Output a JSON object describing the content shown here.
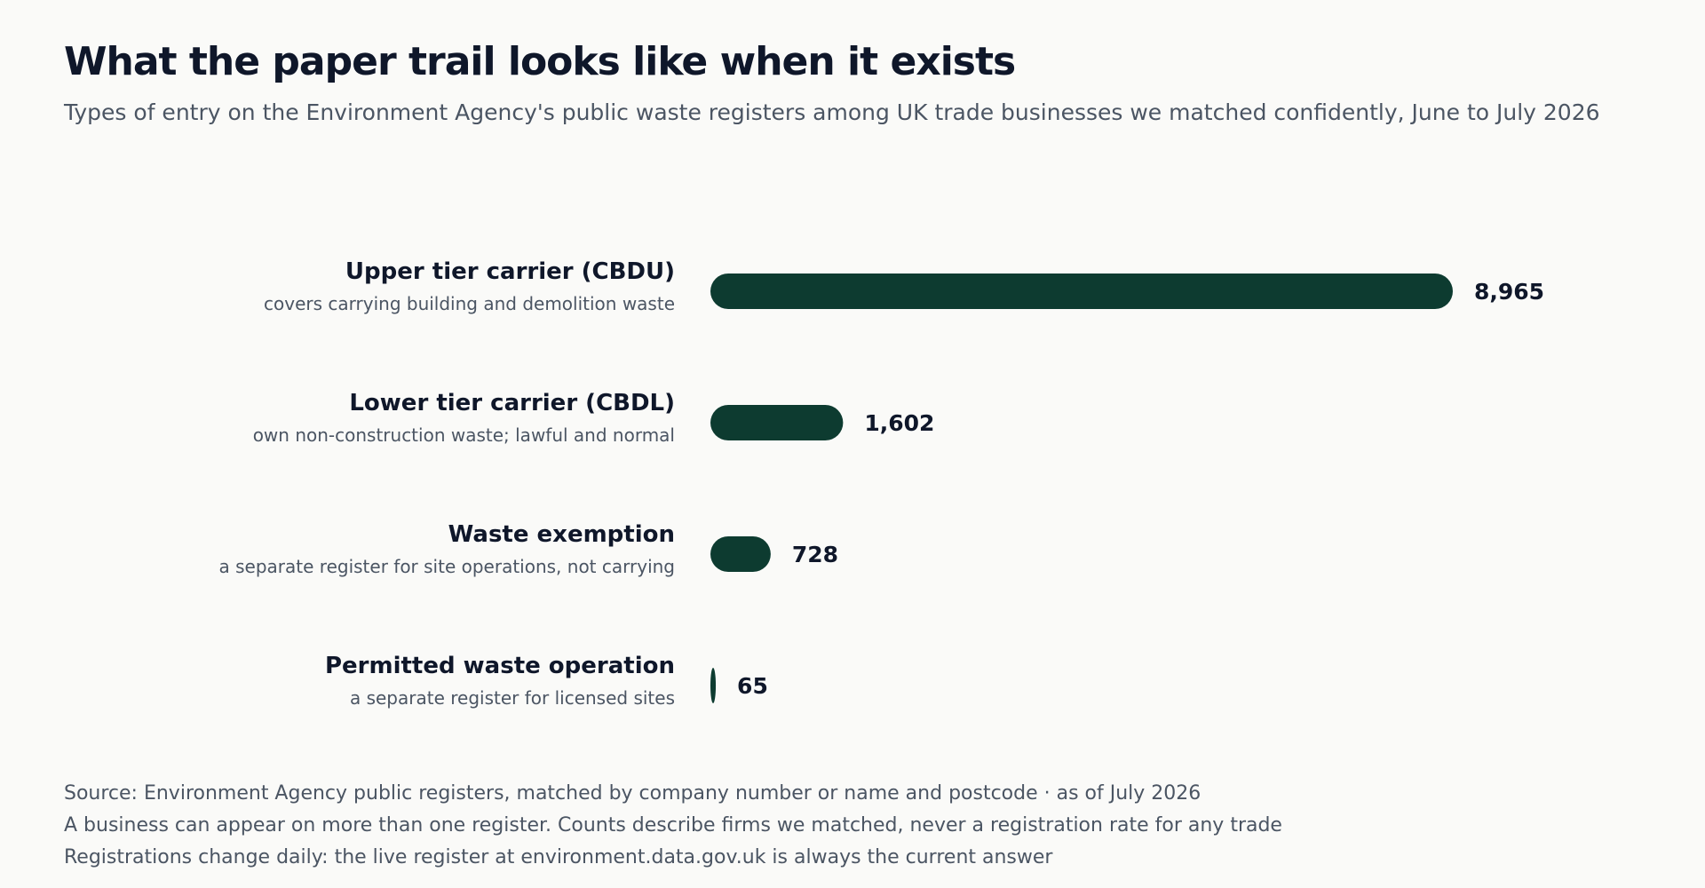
{
  "title": "What the paper trail looks like when it exists",
  "subtitle": "Types of entry on the Environment Agency's public waste registers among UK trade businesses we matched confidently, June to July 2026",
  "colors": {
    "bar": "#0d3b30"
  },
  "chart_data": {
    "type": "bar",
    "orientation": "horizontal",
    "categories": [
      "Upper tier carrier (CBDU)",
      "Lower tier carrier (CBDL)",
      "Waste exemption",
      "Permitted waste operation"
    ],
    "descriptions": [
      "covers carrying building and demolition waste",
      "own non-construction waste; lawful and normal",
      "a separate register for site operations, not carrying",
      "a separate register for licensed sites"
    ],
    "values": [
      8965,
      1602,
      728,
      65
    ],
    "value_labels": [
      "8,965",
      "1,602",
      "728",
      "65"
    ],
    "xlim": [
      0,
      8965
    ],
    "grid": false,
    "legend": "none"
  },
  "footer": {
    "source": "Source: Environment Agency public registers, matched by company number or name and postcode  ·  as of July 2026",
    "note1": "A business can appear on more than one register. Counts describe firms we matched, never a registration rate for any trade",
    "note2": "Registrations change daily: the live register at environment.data.gov.uk is always the current answer"
  }
}
